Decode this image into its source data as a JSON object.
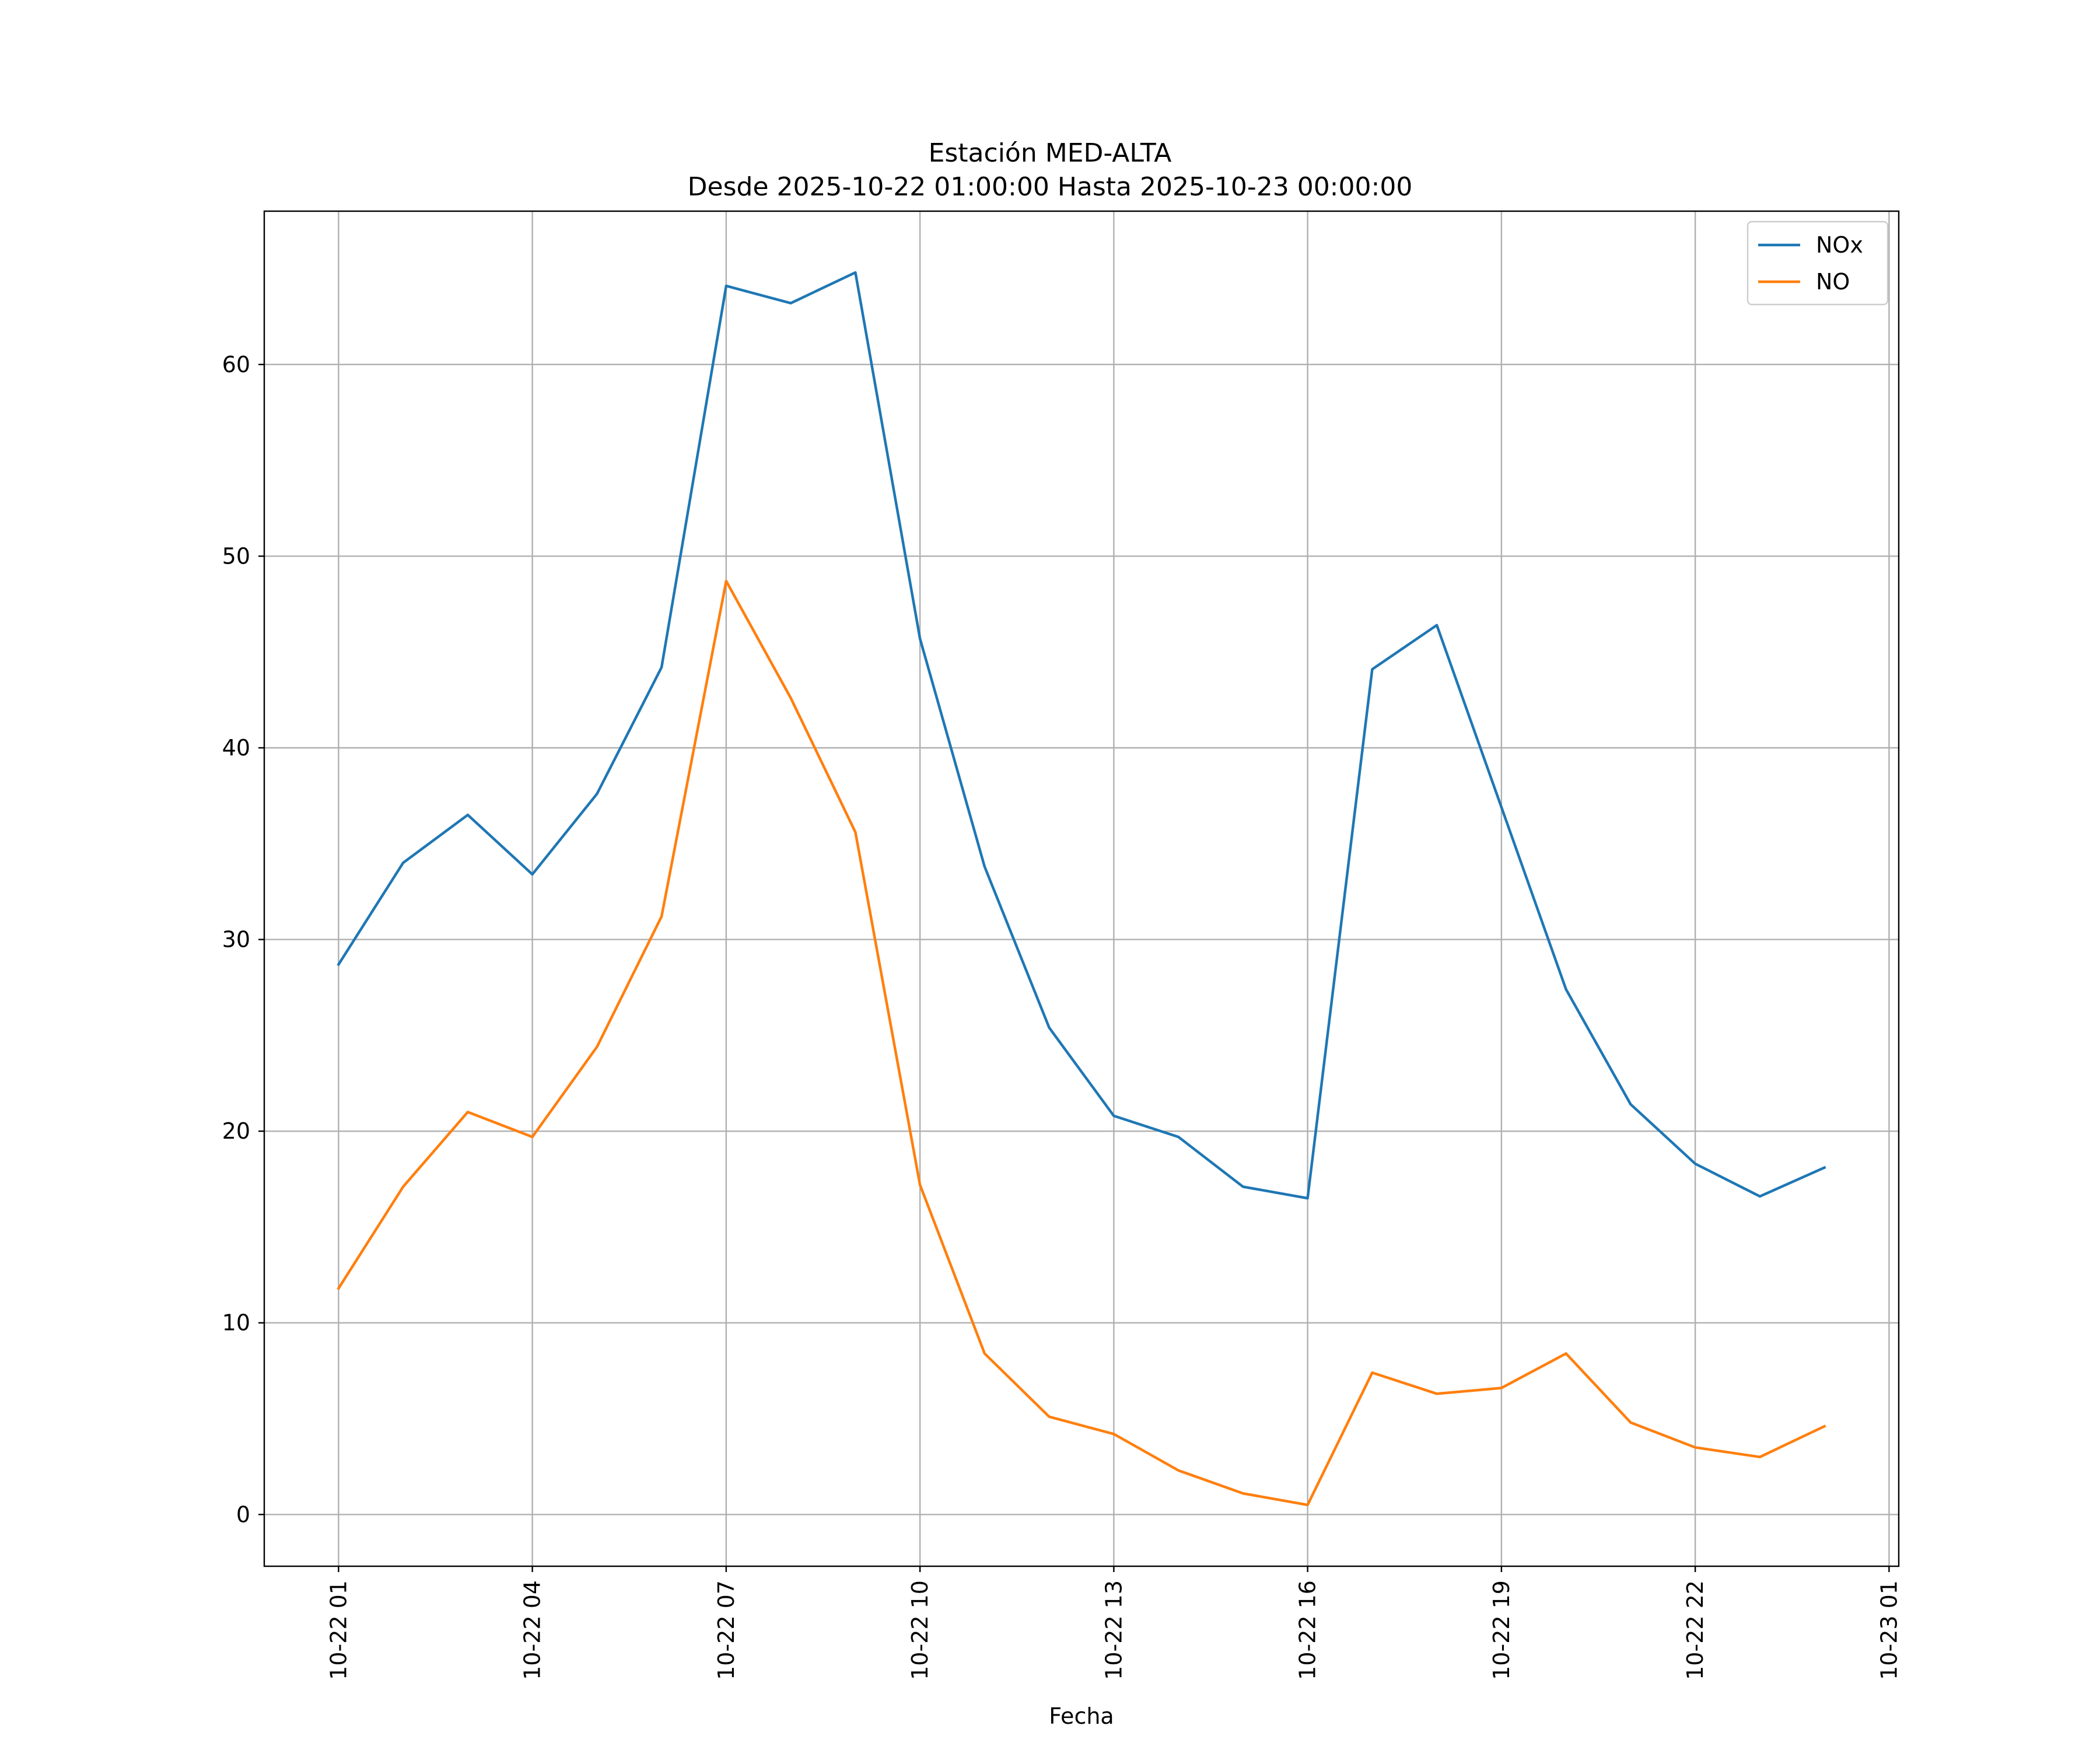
{
  "chart_data": {
    "type": "line",
    "title": "Estación MED-ALTA",
    "subtitle": "Desde 2025-10-22 01:00:00 Hasta 2025-10-23 00:00:00",
    "xlabel": "Fecha",
    "ylabel": "",
    "x": [
      "10-22 01",
      "10-22 02",
      "10-22 03",
      "10-22 04",
      "10-22 05",
      "10-22 06",
      "10-22 07",
      "10-22 08",
      "10-22 09",
      "10-22 10",
      "10-22 11",
      "10-22 12",
      "10-22 13",
      "10-22 14",
      "10-22 15",
      "10-22 16",
      "10-22 17",
      "10-22 18",
      "10-22 19",
      "10-22 20",
      "10-22 21",
      "10-22 22",
      "10-22 23",
      "10-23 00"
    ],
    "xtick_labels": [
      "10-22 01",
      "10-22 04",
      "10-22 07",
      "10-22 10",
      "10-22 13",
      "10-22 16",
      "10-22 19",
      "10-22 22",
      "10-23 01"
    ],
    "xtick_hours": [
      0,
      3,
      6,
      9,
      12,
      15,
      18,
      21,
      24
    ],
    "xlim_hours": [
      -1.15,
      24.15
    ],
    "ylim": [
      -2.7,
      68.0
    ],
    "yticks": [
      0,
      10,
      20,
      30,
      40,
      50,
      60
    ],
    "grid": true,
    "legend_position": "top-right",
    "series": [
      {
        "name": "NOx",
        "color": "#1f77b4",
        "values": [
          28.7,
          34.0,
          36.5,
          33.4,
          37.6,
          44.2,
          64.1,
          63.2,
          64.8,
          45.7,
          33.8,
          25.4,
          20.8,
          19.7,
          17.1,
          16.5,
          44.1,
          46.4,
          36.9,
          27.4,
          21.4,
          18.3,
          16.6,
          18.1
        ]
      },
      {
        "name": "NO",
        "color": "#ff7f0e",
        "values": [
          11.8,
          17.1,
          21.0,
          19.7,
          24.4,
          31.2,
          48.7,
          42.6,
          35.6,
          17.2,
          8.4,
          5.1,
          4.2,
          2.3,
          1.1,
          0.5,
          7.4,
          6.3,
          6.6,
          8.4,
          4.8,
          3.5,
          3.0,
          4.6
        ]
      }
    ]
  }
}
